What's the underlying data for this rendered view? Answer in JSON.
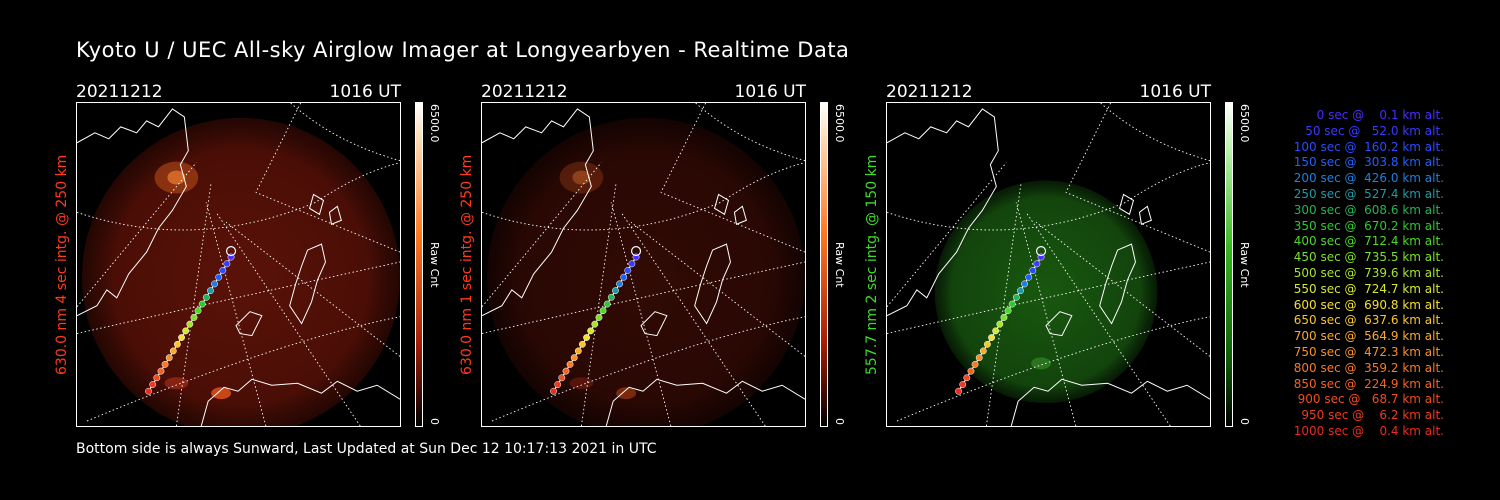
{
  "header": {
    "title": "Kyoto U / UEC All-sky Airglow Imager at Longyearbyen - Realtime Data"
  },
  "panels": [
    {
      "date": "20211212",
      "time": "1016 UT",
      "side_label": "630.0 nm 4 sec intg. @ 250 km",
      "label_color": "#ff3b1a",
      "glow": "red",
      "intensity": 1.0,
      "cbar_max": "6500.0",
      "cbar_min": "0",
      "cbar_unit": "Raw Cnt"
    },
    {
      "date": "20211212",
      "time": "1016 UT",
      "side_label": "630.0 nm 1 sec intg. @ 250 km",
      "label_color": "#ff3b1a",
      "glow": "red",
      "intensity": 0.55,
      "cbar_max": "6500.0",
      "cbar_min": "0",
      "cbar_unit": "Raw Cnt"
    },
    {
      "date": "20211212",
      "time": "1016 UT",
      "side_label": "557.7 nm 2 sec intg. @ 150 km",
      "label_color": "#3ddc2a",
      "glow": "green",
      "intensity": 0.8,
      "cbar_max": "6500.0",
      "cbar_min": "0",
      "cbar_unit": "Raw Cnt"
    }
  ],
  "legend": [
    {
      "text": "   0 sec @    0.1 km alt.",
      "color": "#4a2cff"
    },
    {
      "text": "  50 sec @   52.0 km alt.",
      "color": "#3a3aff"
    },
    {
      "text": " 100 sec @  160.2 km alt.",
      "color": "#2a4cff"
    },
    {
      "text": " 150 sec @  303.8 km alt.",
      "color": "#2060ff"
    },
    {
      "text": " 200 sec @  426.0 km alt.",
      "color": "#1e7fe0"
    },
    {
      "text": " 250 sec @  527.4 km alt.",
      "color": "#1e9aa6"
    },
    {
      "text": " 300 sec @  608.6 km alt.",
      "color": "#22b455"
    },
    {
      "text": " 350 sec @  670.2 km alt.",
      "color": "#2ec82e"
    },
    {
      "text": " 400 sec @  712.4 km alt.",
      "color": "#4cd82a"
    },
    {
      "text": " 450 sec @  735.5 km alt.",
      "color": "#7ae02a"
    },
    {
      "text": " 500 sec @  739.6 km alt.",
      "color": "#a8e42c"
    },
    {
      "text": " 550 sec @  724.7 km alt.",
      "color": "#d6e82e"
    },
    {
      "text": " 600 sec @  690.8 km alt.",
      "color": "#f4e030"
    },
    {
      "text": " 650 sec @  637.6 km alt.",
      "color": "#f8c62c"
    },
    {
      "text": " 700 sec @  564.9 km alt.",
      "color": "#f8aa2a"
    },
    {
      "text": " 750 sec @  472.3 km alt.",
      "color": "#f89028"
    },
    {
      "text": " 800 sec @  359.2 km alt.",
      "color": "#f87a26"
    },
    {
      "text": " 850 sec @  224.9 km alt.",
      "color": "#f46224"
    },
    {
      "text": " 900 sec @   68.7 km alt.",
      "color": "#f04c22"
    },
    {
      "text": " 950 sec @    6.2 km alt.",
      "color": "#ee3a20"
    },
    {
      "text": "1000 sec @    0.4 km alt.",
      "color": "#ec2a1e"
    }
  ],
  "footer": {
    "text": "Bottom side is always Sunward, Last Updated at Sun Dec 12 10:17:13 2021 in UTC"
  }
}
